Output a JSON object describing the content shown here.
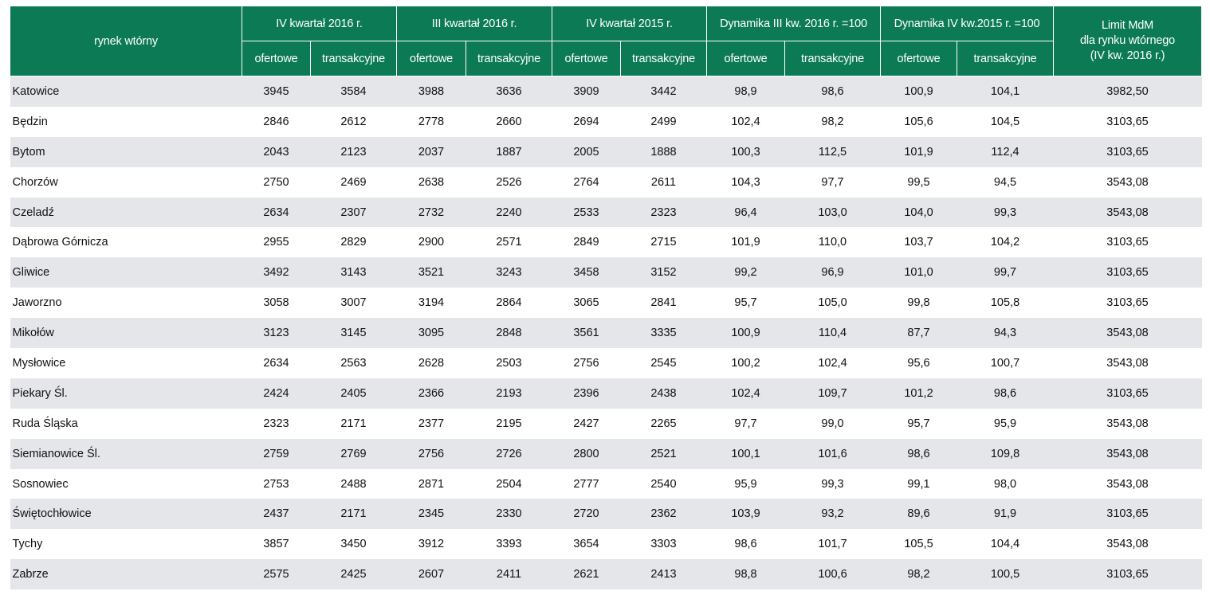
{
  "header": {
    "city_col": "rynek wtórny",
    "groups": [
      "IV kwartał 2016 r.",
      "III kwartał 2016 r.",
      "IV kwartał 2015 r.",
      "Dynamika III kw. 2016 r. =100",
      "Dynamika IV kw.2015 r. =100"
    ],
    "limit_line1": "Limit MdM",
    "limit_line2": "dla rynku wtórnego",
    "limit_line3": "(IV kw. 2016 r.)",
    "sub": {
      "ofertowe": "ofertowe",
      "transakcyjne": "transakcyjne"
    }
  },
  "rows": [
    {
      "city": "Katowice",
      "v": [
        "3945",
        "3584",
        "3988",
        "3636",
        "3909",
        "3442",
        "98,9",
        "98,6",
        "100,9",
        "104,1",
        "3982,50"
      ]
    },
    {
      "city": "Będzin",
      "v": [
        "2846",
        "2612",
        "2778",
        "2660",
        "2694",
        "2499",
        "102,4",
        "98,2",
        "105,6",
        "104,5",
        "3103,65"
      ]
    },
    {
      "city": "Bytom",
      "v": [
        "2043",
        "2123",
        "2037",
        "1887",
        "2005",
        "1888",
        "100,3",
        "112,5",
        "101,9",
        "112,4",
        "3103,65"
      ]
    },
    {
      "city": "Chorzów",
      "v": [
        "2750",
        "2469",
        "2638",
        "2526",
        "2764",
        "2611",
        "104,3",
        "97,7",
        "99,5",
        "94,5",
        "3543,08"
      ]
    },
    {
      "city": "Czeladź",
      "v": [
        "2634",
        "2307",
        "2732",
        "2240",
        "2533",
        "2323",
        "96,4",
        "103,0",
        "104,0",
        "99,3",
        "3543,08"
      ]
    },
    {
      "city": "Dąbrowa Górnicza",
      "v": [
        "2955",
        "2829",
        "2900",
        "2571",
        "2849",
        "2715",
        "101,9",
        "110,0",
        "103,7",
        "104,2",
        "3103,65"
      ]
    },
    {
      "city": "Gliwice",
      "v": [
        "3492",
        "3143",
        "3521",
        "3243",
        "3458",
        "3152",
        "99,2",
        "96,9",
        "101,0",
        "99,7",
        "3103,65"
      ]
    },
    {
      "city": "Jaworzno",
      "v": [
        "3058",
        "3007",
        "3194",
        "2864",
        "3065",
        "2841",
        "95,7",
        "105,0",
        "99,8",
        "105,8",
        "3103,65"
      ]
    },
    {
      "city": "Mikołów",
      "v": [
        "3123",
        "3145",
        "3095",
        "2848",
        "3561",
        "3335",
        "100,9",
        "110,4",
        "87,7",
        "94,3",
        "3543,08"
      ]
    },
    {
      "city": "Mysłowice",
      "v": [
        "2634",
        "2563",
        "2628",
        "2503",
        "2756",
        "2545",
        "100,2",
        "102,4",
        "95,6",
        "100,7",
        "3543,08"
      ]
    },
    {
      "city": "Piekary Śl.",
      "v": [
        "2424",
        "2405",
        "2366",
        "2193",
        "2396",
        "2438",
        "102,4",
        "109,7",
        "101,2",
        "98,6",
        "3103,65"
      ]
    },
    {
      "city": "Ruda Śląska",
      "v": [
        "2323",
        "2171",
        "2377",
        "2195",
        "2427",
        "2265",
        "97,7",
        "99,0",
        "95,7",
        "95,9",
        "3543,08"
      ]
    },
    {
      "city": "Siemianowice Śl.",
      "v": [
        "2759",
        "2769",
        "2756",
        "2726",
        "2800",
        "2521",
        "100,1",
        "101,6",
        "98,6",
        "109,8",
        "3543,08"
      ]
    },
    {
      "city": "Sosnowiec",
      "v": [
        "2753",
        "2488",
        "2871",
        "2504",
        "2777",
        "2540",
        "95,9",
        "99,3",
        "99,1",
        "98,0",
        "3543,08"
      ]
    },
    {
      "city": "Świętochłowice",
      "v": [
        "2437",
        "2171",
        "2345",
        "2330",
        "2720",
        "2362",
        "103,9",
        "93,2",
        "89,6",
        "91,9",
        "3103,65"
      ]
    },
    {
      "city": "Tychy",
      "v": [
        "3857",
        "3450",
        "3912",
        "3393",
        "3654",
        "3303",
        "98,6",
        "101,7",
        "105,5",
        "104,4",
        "3543,08"
      ]
    },
    {
      "city": "Zabrze",
      "v": [
        "2575",
        "2425",
        "2607",
        "2411",
        "2621",
        "2413",
        "98,8",
        "100,6",
        "98,2",
        "100,5",
        "3103,65"
      ]
    }
  ]
}
